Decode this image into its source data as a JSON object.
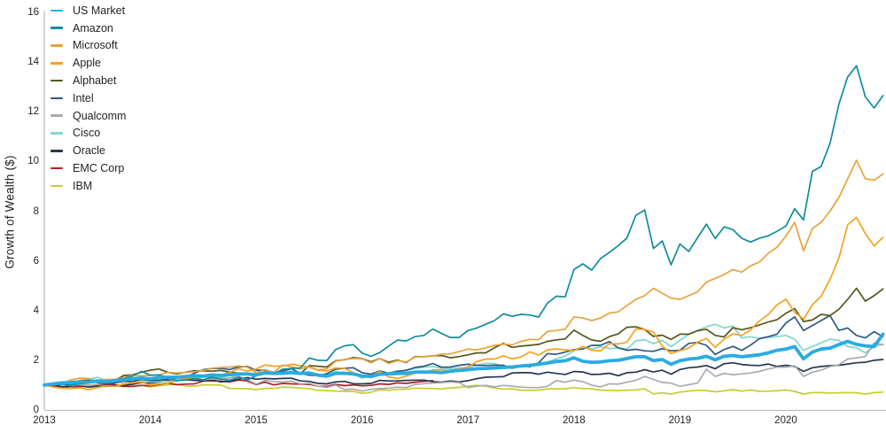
{
  "chart_data": {
    "type": "line",
    "title": "",
    "ylabel": "Growth of Wealth ($)",
    "xlabel": "",
    "ylim": [
      0,
      16
    ],
    "yticks": [
      0,
      2,
      4,
      6,
      8,
      10,
      12,
      14,
      16
    ],
    "xticks": [
      2013,
      2014,
      2015,
      2016,
      2017,
      2018,
      2019,
      2020
    ],
    "x_unit": "month",
    "x_start": "2013-01",
    "x_end": "2020-12",
    "grid": false,
    "legend_position": "top-left",
    "axis_color": "#bcbec0",
    "tick_label_color": "#231f20",
    "series": [
      {
        "name": "US Market",
        "color": "#29abe2",
        "width": 3.8,
        "values": [
          1.0,
          1.05,
          1.09,
          1.11,
          1.13,
          1.12,
          1.17,
          1.14,
          1.18,
          1.22,
          1.26,
          1.29,
          1.25,
          1.31,
          1.32,
          1.32,
          1.35,
          1.38,
          1.36,
          1.41,
          1.39,
          1.42,
          1.45,
          1.45,
          1.41,
          1.49,
          1.47,
          1.48,
          1.5,
          1.47,
          1.49,
          1.4,
          1.36,
          1.47,
          1.48,
          1.45,
          1.37,
          1.35,
          1.44,
          1.45,
          1.47,
          1.47,
          1.53,
          1.53,
          1.53,
          1.5,
          1.56,
          1.59,
          1.62,
          1.66,
          1.67,
          1.69,
          1.71,
          1.73,
          1.77,
          1.8,
          1.84,
          1.89,
          1.95,
          1.98,
          2.1,
          1.96,
          1.92,
          1.93,
          1.98,
          2.0,
          2.07,
          2.14,
          2.14,
          1.99,
          2.03,
          1.84,
          1.98,
          2.05,
          2.08,
          2.16,
          2.02,
          2.16,
          2.19,
          2.14,
          2.18,
          2.22,
          2.3,
          2.4,
          2.45,
          2.55,
          2.06,
          2.33,
          2.45,
          2.49,
          2.63,
          2.76,
          2.64,
          2.58,
          2.55,
          3.05
        ]
      },
      {
        "name": "Amazon",
        "color": "#0f8c9c",
        "width": 1.7,
        "values": [
          1.0,
          1.03,
          1.04,
          1.0,
          1.06,
          1.08,
          1.18,
          1.1,
          1.22,
          1.27,
          1.37,
          1.55,
          1.4,
          1.41,
          1.31,
          1.18,
          1.21,
          1.26,
          1.22,
          1.32,
          1.25,
          1.19,
          1.32,
          1.21,
          1.38,
          1.48,
          1.45,
          1.64,
          1.67,
          1.69,
          2.09,
          2.0,
          1.99,
          2.43,
          2.58,
          2.63,
          2.29,
          2.16,
          2.31,
          2.57,
          2.81,
          2.78,
          2.95,
          3.0,
          3.26,
          3.08,
          2.92,
          2.92,
          3.2,
          3.3,
          3.45,
          3.6,
          3.87,
          3.77,
          3.85,
          3.82,
          3.74,
          4.3,
          4.58,
          4.55,
          5.65,
          5.88,
          5.63,
          6.09,
          6.34,
          6.61,
          6.92,
          7.83,
          8.05,
          6.5,
          6.8,
          5.84,
          6.68,
          6.38,
          6.93,
          7.48,
          6.9,
          7.37,
          7.26,
          6.91,
          6.76,
          6.91,
          7.01,
          7.19,
          7.4,
          8.1,
          7.65,
          9.6,
          9.8,
          10.73,
          12.3,
          13.4,
          13.85,
          12.6,
          12.15,
          12.65
        ]
      },
      {
        "name": "Microsoft",
        "color": "#e8a33d",
        "width": 1.7,
        "values": [
          1.0,
          1.02,
          1.05,
          1.21,
          1.28,
          1.27,
          1.17,
          1.23,
          1.23,
          1.3,
          1.4,
          1.38,
          1.39,
          1.41,
          1.51,
          1.49,
          1.51,
          1.54,
          1.59,
          1.68,
          1.71,
          1.73,
          1.77,
          1.72,
          1.5,
          1.62,
          1.51,
          1.81,
          1.74,
          1.65,
          1.74,
          1.62,
          1.65,
          1.96,
          2.03,
          2.07,
          2.06,
          1.9,
          2.07,
          1.87,
          1.99,
          1.93,
          2.13,
          2.15,
          2.17,
          2.25,
          2.26,
          2.35,
          2.45,
          2.42,
          2.5,
          2.6,
          2.65,
          2.62,
          2.76,
          2.84,
          2.83,
          3.16,
          3.2,
          3.25,
          3.75,
          3.7,
          3.6,
          3.7,
          3.9,
          3.95,
          4.2,
          4.45,
          4.6,
          4.9,
          4.7,
          4.5,
          4.45,
          4.6,
          4.75,
          5.15,
          5.3,
          5.45,
          5.65,
          5.55,
          5.8,
          5.95,
          6.3,
          6.55,
          7.0,
          7.55,
          6.4,
          7.3,
          7.55,
          8.0,
          8.55,
          9.3,
          10.05,
          9.3,
          9.25,
          9.5
        ]
      },
      {
        "name": "Apple",
        "color": "#f7a11c",
        "width": 1.7,
        "values": [
          1.0,
          0.92,
          0.88,
          0.87,
          0.89,
          0.82,
          0.9,
          0.97,
          0.95,
          1.04,
          1.1,
          1.12,
          1.0,
          1.05,
          1.08,
          1.18,
          1.27,
          1.3,
          1.34,
          1.43,
          1.41,
          1.51,
          1.66,
          1.56,
          1.65,
          1.81,
          1.76,
          1.77,
          1.84,
          1.78,
          1.72,
          1.6,
          1.57,
          1.69,
          1.68,
          1.5,
          1.38,
          1.37,
          1.55,
          1.33,
          1.27,
          1.36,
          1.48,
          1.51,
          1.61,
          1.62,
          1.58,
          1.65,
          1.73,
          1.95,
          2.05,
          2.05,
          2.18,
          2.06,
          2.13,
          2.34,
          2.21,
          2.42,
          2.46,
          2.42,
          2.39,
          2.55,
          2.41,
          2.37,
          2.67,
          2.66,
          2.73,
          3.26,
          3.24,
          3.14,
          2.57,
          2.27,
          2.39,
          2.49,
          2.73,
          2.88,
          2.52,
          2.85,
          3.06,
          3.0,
          3.23,
          3.58,
          3.84,
          4.23,
          4.46,
          3.93,
          3.66,
          4.23,
          4.58,
          5.25,
          6.11,
          7.45,
          7.75,
          7.1,
          6.6,
          6.95
        ]
      },
      {
        "name": "Alphabet",
        "color": "#55581d",
        "width": 1.7,
        "values": [
          1.0,
          1.07,
          1.09,
          1.11,
          1.17,
          1.19,
          1.2,
          1.15,
          1.19,
          1.39,
          1.41,
          1.52,
          1.6,
          1.65,
          1.51,
          1.45,
          1.52,
          1.58,
          1.57,
          1.56,
          1.59,
          1.53,
          1.48,
          1.43,
          1.44,
          1.51,
          1.48,
          1.49,
          1.48,
          1.46,
          1.78,
          1.76,
          1.73,
          1.98,
          2.02,
          2.11,
          2.07,
          1.94,
          2.07,
          1.92,
          2.01,
          1.91,
          2.15,
          2.14,
          2.18,
          2.19,
          2.1,
          2.15,
          2.22,
          2.3,
          2.3,
          2.51,
          2.68,
          2.52,
          2.57,
          2.6,
          2.64,
          2.76,
          2.82,
          2.86,
          3.21,
          3.0,
          2.82,
          2.76,
          2.95,
          3.06,
          3.33,
          3.35,
          3.24,
          2.96,
          3.01,
          2.84,
          3.05,
          3.05,
          3.19,
          3.25,
          3.0,
          2.94,
          3.31,
          3.23,
          3.31,
          3.42,
          3.54,
          3.63,
          3.89,
          4.08,
          3.56,
          3.62,
          3.85,
          3.8,
          4.05,
          4.45,
          4.9,
          4.38,
          4.6,
          4.87
        ]
      },
      {
        "name": "Intel",
        "color": "#2e5a84",
        "width": 1.7,
        "values": [
          1.0,
          1.0,
          1.04,
          1.11,
          1.15,
          1.15,
          1.11,
          1.05,
          1.09,
          1.17,
          1.14,
          1.24,
          1.18,
          1.19,
          1.24,
          1.29,
          1.32,
          1.48,
          1.62,
          1.67,
          1.67,
          1.63,
          1.73,
          1.75,
          1.6,
          1.6,
          1.51,
          1.57,
          1.66,
          1.47,
          1.4,
          1.38,
          1.46,
          1.64,
          1.68,
          1.7,
          1.5,
          1.44,
          1.57,
          1.47,
          1.55,
          1.6,
          1.71,
          1.76,
          1.87,
          1.72,
          1.73,
          1.8,
          1.84,
          1.8,
          1.79,
          1.8,
          1.8,
          1.68,
          1.77,
          1.74,
          1.9,
          2.27,
          2.24,
          2.33,
          2.43,
          2.45,
          2.6,
          2.6,
          2.75,
          2.5,
          2.4,
          2.44,
          2.38,
          2.36,
          2.47,
          2.38,
          2.4,
          2.68,
          2.72,
          2.6,
          2.23,
          2.43,
          2.56,
          2.4,
          2.61,
          2.87,
          2.95,
          3.05,
          3.5,
          3.75,
          3.2,
          3.4,
          3.6,
          3.8,
          3.2,
          3.3,
          3.0,
          2.9,
          3.15,
          2.95
        ]
      },
      {
        "name": "Qualcomm",
        "color": "#a9abae",
        "width": 1.7,
        "values": [
          1.0,
          1.02,
          1.04,
          0.99,
          1.02,
          0.98,
          1.03,
          1.07,
          1.09,
          1.12,
          1.18,
          1.2,
          1.2,
          1.22,
          1.28,
          1.28,
          1.3,
          1.29,
          1.21,
          1.25,
          1.23,
          1.28,
          1.35,
          1.22,
          1.04,
          1.19,
          1.14,
          1.13,
          1.16,
          1.05,
          1.07,
          0.96,
          0.91,
          1.0,
          0.82,
          0.84,
          0.76,
          0.83,
          0.86,
          0.88,
          0.92,
          0.9,
          1.03,
          1.06,
          1.08,
          1.1,
          1.13,
          1.1,
          0.9,
          0.96,
          0.99,
          0.93,
          0.99,
          0.96,
          0.92,
          0.9,
          0.9,
          0.95,
          1.18,
          1.12,
          1.2,
          1.14,
          1.0,
          0.93,
          1.05,
          1.04,
          1.12,
          1.19,
          1.35,
          1.23,
          1.11,
          1.08,
          0.95,
          1.02,
          1.08,
          1.64,
          1.35,
          1.47,
          1.42,
          1.45,
          1.49,
          1.55,
          1.65,
          1.72,
          1.72,
          1.78,
          1.35,
          1.52,
          1.6,
          1.75,
          1.82,
          2.05,
          2.1,
          2.15,
          2.7,
          2.62
        ]
      },
      {
        "name": "Cisco",
        "color": "#7fd7cb",
        "width": 1.7,
        "values": [
          1.0,
          1.03,
          1.06,
          1.05,
          1.2,
          1.24,
          1.31,
          1.19,
          1.2,
          1.16,
          1.1,
          1.14,
          1.13,
          1.14,
          1.15,
          1.19,
          1.27,
          1.29,
          1.33,
          1.3,
          1.32,
          1.28,
          1.4,
          1.46,
          1.4,
          1.56,
          1.46,
          1.53,
          1.56,
          1.47,
          1.52,
          1.39,
          1.41,
          1.55,
          1.47,
          1.46,
          1.28,
          1.41,
          1.55,
          1.5,
          1.58,
          1.57,
          1.68,
          1.72,
          1.75,
          1.69,
          1.66,
          1.7,
          1.71,
          1.8,
          1.87,
          1.87,
          1.75,
          1.77,
          1.78,
          1.81,
          1.87,
          1.93,
          2.06,
          2.17,
          2.38,
          2.55,
          2.45,
          2.55,
          2.47,
          2.5,
          2.45,
          2.78,
          2.83,
          2.67,
          2.8,
          2.55,
          2.8,
          3.05,
          3.2,
          3.35,
          3.45,
          3.3,
          3.38,
          2.9,
          2.95,
          2.88,
          2.92,
          2.95,
          3.0,
          2.85,
          2.4,
          2.55,
          2.7,
          2.85,
          2.8,
          2.55,
          2.5,
          2.3,
          2.55,
          2.65
        ]
      },
      {
        "name": "Oracle",
        "color": "#26374f",
        "width": 1.7,
        "values": [
          1.0,
          1.02,
          0.94,
          0.96,
          1.0,
          0.92,
          0.96,
          0.95,
          0.98,
          1.0,
          1.03,
          1.1,
          1.08,
          1.13,
          1.18,
          1.2,
          1.22,
          1.19,
          1.18,
          1.22,
          1.13,
          1.15,
          1.24,
          1.3,
          1.24,
          1.27,
          1.25,
          1.27,
          1.28,
          1.17,
          1.15,
          1.07,
          1.05,
          1.13,
          1.15,
          1.06,
          1.05,
          1.07,
          1.19,
          1.17,
          1.17,
          1.19,
          1.2,
          1.2,
          1.14,
          1.12,
          1.17,
          1.13,
          1.18,
          1.26,
          1.32,
          1.33,
          1.34,
          1.49,
          1.5,
          1.5,
          1.44,
          1.52,
          1.47,
          1.43,
          1.55,
          1.53,
          1.43,
          1.44,
          1.48,
          1.38,
          1.5,
          1.52,
          1.62,
          1.53,
          1.6,
          1.44,
          1.63,
          1.7,
          1.73,
          1.79,
          1.66,
          1.86,
          1.9,
          1.83,
          1.8,
          1.79,
          1.85,
          1.75,
          1.8,
          1.75,
          1.55,
          1.7,
          1.75,
          1.78,
          1.8,
          1.85,
          1.9,
          1.92,
          2.0,
          2.03
        ]
      },
      {
        "name": "EMC Corp",
        "color": "#b01f24",
        "width": 1.7,
        "values": [
          1.0,
          0.95,
          0.93,
          0.88,
          0.95,
          0.93,
          1.02,
          1.03,
          1.02,
          0.95,
          0.95,
          0.99,
          0.97,
          1.03,
          1.08,
          1.02,
          1.04,
          1.05,
          1.16,
          1.17,
          1.16,
          1.13,
          1.2,
          1.17,
          1.02,
          1.12,
          1.01,
          1.07,
          1.05,
          1.04,
          1.03,
          0.96,
          0.95,
          1.03,
          0.98,
          1.01,
          0.97,
          0.99,
          1.05,
          1.03,
          1.09,
          1.07,
          1.12,
          1.15,
          1.18
        ]
      },
      {
        "name": "IBM",
        "color": "#c6ce2e",
        "width": 1.7,
        "values": [
          1.0,
          1.04,
          1.11,
          1.06,
          1.09,
          1.0,
          1.02,
          0.96,
          0.97,
          0.94,
          0.94,
          0.99,
          0.93,
          0.97,
          1.01,
          1.03,
          0.97,
          0.96,
          1.01,
          1.01,
          1.0,
          0.87,
          0.86,
          0.86,
          0.82,
          0.87,
          0.87,
          0.92,
          0.91,
          0.88,
          0.86,
          0.79,
          0.78,
          0.76,
          0.75,
          0.75,
          0.67,
          0.71,
          0.82,
          0.79,
          0.83,
          0.83,
          0.88,
          0.87,
          0.87,
          0.84,
          0.89,
          0.91,
          0.96,
          0.99,
          0.96,
          0.88,
          0.84,
          0.85,
          0.8,
          0.79,
          0.8,
          0.85,
          0.85,
          0.85,
          0.9,
          0.86,
          0.85,
          0.8,
          0.79,
          0.78,
          0.8,
          0.81,
          0.85,
          0.65,
          0.69,
          0.64,
          0.72,
          0.76,
          0.79,
          0.78,
          0.73,
          0.77,
          0.82,
          0.76,
          0.81,
          0.75,
          0.76,
          0.77,
          0.81,
          0.75,
          0.64,
          0.7,
          0.7,
          0.68,
          0.69,
          0.7,
          0.69,
          0.64,
          0.7,
          0.72
        ]
      }
    ]
  }
}
